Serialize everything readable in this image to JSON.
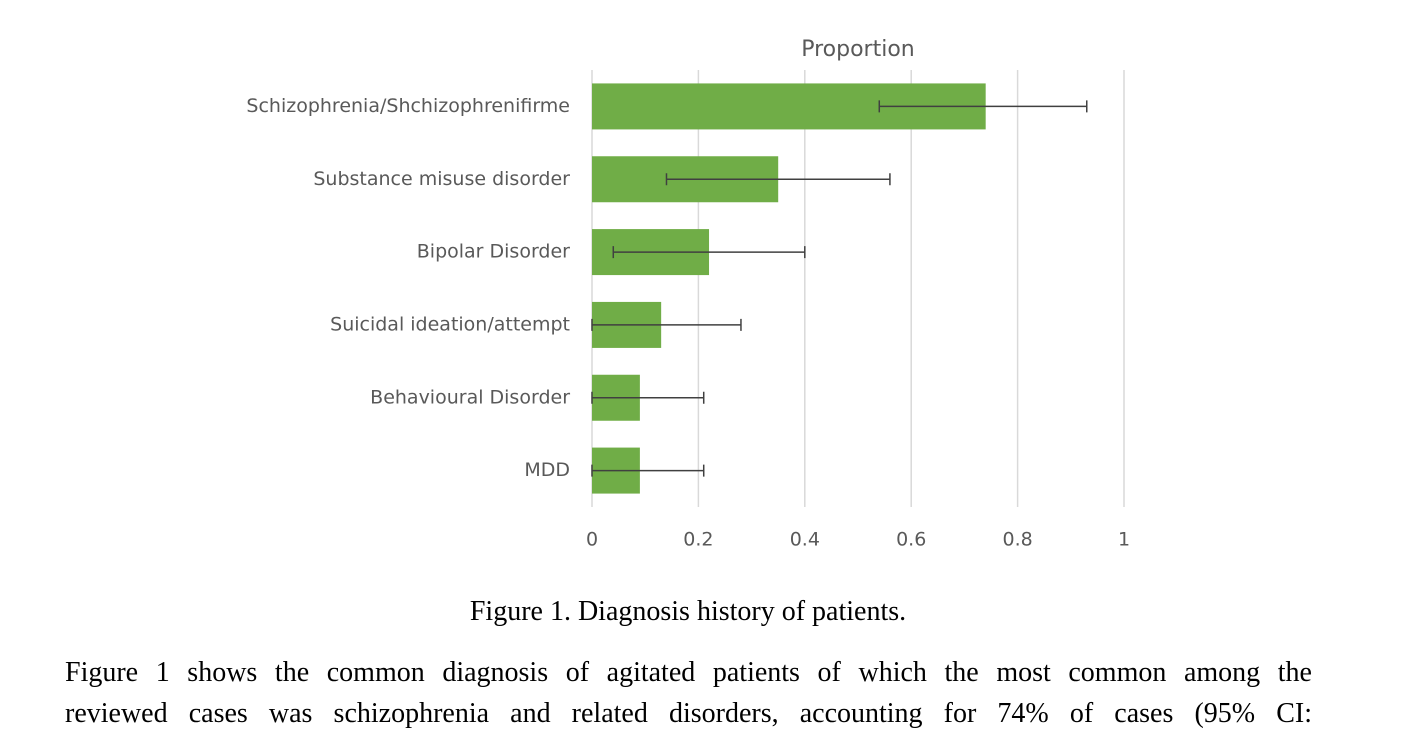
{
  "chart_data": {
    "type": "bar",
    "orientation": "horizontal",
    "title": "Proportion",
    "categories": [
      "Schizophrenia/Shchizophrenifirme",
      "Substance misuse disorder",
      "Bipolar Disorder",
      "Suicidal ideation/attempt",
      "Behavioural Disorder",
      "MDD"
    ],
    "values": [
      0.74,
      0.35,
      0.22,
      0.13,
      0.09,
      0.09
    ],
    "ci_lower": [
      0.54,
      0.14,
      0.04,
      0,
      0,
      0
    ],
    "ci_upper": [
      0.93,
      0.56,
      0.4,
      0.28,
      0.21,
      0.21
    ],
    "color": "#70ad47",
    "error_color": "#404040",
    "xlim": [
      0,
      1
    ],
    "xticks": [
      0,
      0.2,
      0.4,
      0.6,
      0.8,
      1
    ],
    "grid": true
  },
  "caption": "Figure 1. Diagnosis history of patients.",
  "paragraph": [
    "Figure 1 shows the common diagnosis of agitated patients of which the most common among the",
    "reviewed cases was schizophrenia and related disorders, accounting for 74% of cases (95% CI:"
  ]
}
